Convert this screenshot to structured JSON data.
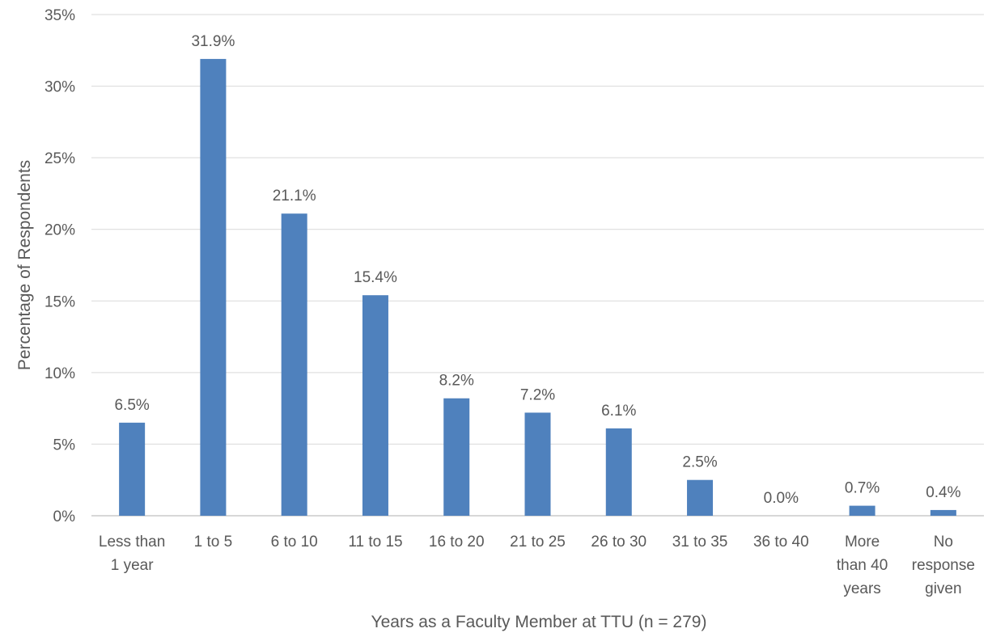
{
  "chart_data": {
    "type": "bar",
    "title": "",
    "xlabel": "Years as a Faculty Member at TTU (n = 279)",
    "ylabel": "Percentage  of Respondents",
    "categories": [
      [
        "Less than",
        "1 year"
      ],
      [
        "1 to 5"
      ],
      [
        "6 to 10"
      ],
      [
        "11 to 15"
      ],
      [
        "16 to 20"
      ],
      [
        "21 to 25"
      ],
      [
        "26 to 30"
      ],
      [
        "31 to 35"
      ],
      [
        "36 to 40"
      ],
      [
        "More",
        "than 40",
        "years"
      ],
      [
        "No",
        "response",
        "given"
      ]
    ],
    "values": [
      6.5,
      31.9,
      21.1,
      15.4,
      8.2,
      7.2,
      6.1,
      2.5,
      0.0,
      0.7,
      0.4
    ],
    "data_labels": [
      "6.5%",
      "31.9%",
      "21.1%",
      "15.4%",
      "8.2%",
      "7.2%",
      "6.1%",
      "2.5%",
      "0.0%",
      "0.7%",
      "0.4%"
    ],
    "ylim": [
      0,
      35
    ],
    "yticks": [
      0,
      5,
      10,
      15,
      20,
      25,
      30,
      35
    ],
    "ytick_labels": [
      "0%",
      "5%",
      "10%",
      "15%",
      "20%",
      "25%",
      "30%",
      "35%"
    ],
    "grid": true,
    "legend": "none",
    "bar_color": "#4f81bd"
  }
}
